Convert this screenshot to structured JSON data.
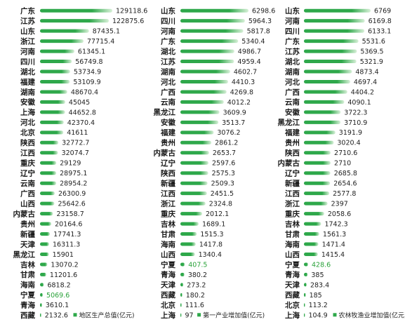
{
  "chart_data": [
    {
      "type": "bar",
      "orientation": "horizontal",
      "title": "",
      "series": [
        {
          "name": "地区生产总值(亿元)"
        }
      ],
      "bar_color": "#2ea84a",
      "bar_gradient_end": "#d8f0d8",
      "highlight_color": "#2aa23a",
      "highlight": [
        "宁夏"
      ],
      "items": [
        {
          "label": "广东",
          "value": 129118.6,
          "text": "129118.6"
        },
        {
          "label": "江苏",
          "value": 122875.6,
          "text": "122875.6"
        },
        {
          "label": "山东",
          "value": 87435.1,
          "text": "87435.1"
        },
        {
          "label": "浙江",
          "value": 77715.4,
          "text": "77715.4"
        },
        {
          "label": "河南",
          "value": 61345.1,
          "text": "61345.1"
        },
        {
          "label": "四川",
          "value": 56749.8,
          "text": "56749.8"
        },
        {
          "label": "湖北",
          "value": 53734.9,
          "text": "53734.9"
        },
        {
          "label": "福建",
          "value": 53109.9,
          "text": "53109.9"
        },
        {
          "label": "湖南",
          "value": 48670.4,
          "text": "48670.4"
        },
        {
          "label": "安徽",
          "value": 45045,
          "text": "45045"
        },
        {
          "label": "上海",
          "value": 44652.8,
          "text": "44652.8"
        },
        {
          "label": "河北",
          "value": 42370.4,
          "text": "42370.4"
        },
        {
          "label": "北京",
          "value": 41611,
          "text": "41611"
        },
        {
          "label": "陕西",
          "value": 32772.7,
          "text": "32772.7"
        },
        {
          "label": "江西",
          "value": 32074.7,
          "text": "32074.7"
        },
        {
          "label": "重庆",
          "value": 29129,
          "text": "29129"
        },
        {
          "label": "辽宁",
          "value": 28975.1,
          "text": "28975.1"
        },
        {
          "label": "云南",
          "value": 28954.2,
          "text": "28954.2"
        },
        {
          "label": "广西",
          "value": 26300.9,
          "text": "26300.9"
        },
        {
          "label": "山西",
          "value": 25642.6,
          "text": "25642.6"
        },
        {
          "label": "内蒙古",
          "value": 23158.7,
          "text": "23158.7"
        },
        {
          "label": "贵州",
          "value": 20164.6,
          "text": "20164.6"
        },
        {
          "label": "新疆",
          "value": 17741.3,
          "text": "17741.3"
        },
        {
          "label": "天津",
          "value": 16311.3,
          "text": "16311.3"
        },
        {
          "label": "黑龙江",
          "value": 15901,
          "text": "15901"
        },
        {
          "label": "吉林",
          "value": 13070.2,
          "text": "13070.2"
        },
        {
          "label": "甘肃",
          "value": 11201.6,
          "text": "11201.6"
        },
        {
          "label": "海南",
          "value": 6818.2,
          "text": "6818.2"
        },
        {
          "label": "宁夏",
          "value": 5069.6,
          "text": "5069.6"
        },
        {
          "label": "青海",
          "value": 3610.1,
          "text": "3610.1"
        },
        {
          "label": "西藏",
          "value": 2132.6,
          "text": "2132.6"
        }
      ]
    },
    {
      "type": "bar",
      "orientation": "horizontal",
      "title": "",
      "series": [
        {
          "name": "第一产业增加值(亿元)"
        }
      ],
      "bar_color": "#2ea84a",
      "bar_gradient_end": "#d8f0d8",
      "highlight_color": "#2aa23a",
      "highlight": [
        "宁夏"
      ],
      "items": [
        {
          "label": "山东",
          "value": 6298.6,
          "text": "6298.6"
        },
        {
          "label": "四川",
          "value": 5964.3,
          "text": "5964.3"
        },
        {
          "label": "河南",
          "value": 5817.8,
          "text": "5817.8"
        },
        {
          "label": "广东",
          "value": 5340.4,
          "text": "5340.4"
        },
        {
          "label": "湖北",
          "value": 4986.7,
          "text": "4986.7"
        },
        {
          "label": "江苏",
          "value": 4959.4,
          "text": "4959.4"
        },
        {
          "label": "湖南",
          "value": 4602.7,
          "text": "4602.7"
        },
        {
          "label": "河北",
          "value": 4410.3,
          "text": "4410.3"
        },
        {
          "label": "广西",
          "value": 4269.8,
          "text": "4269.8"
        },
        {
          "label": "云南",
          "value": 4012.2,
          "text": "4012.2"
        },
        {
          "label": "黑龙江",
          "value": 3609.9,
          "text": "3609.9"
        },
        {
          "label": "安徽",
          "value": 3513.7,
          "text": "3513.7"
        },
        {
          "label": "福建",
          "value": 3076.2,
          "text": "3076.2"
        },
        {
          "label": "贵州",
          "value": 2861.2,
          "text": "2861.2"
        },
        {
          "label": "内蒙古",
          "value": 2653.7,
          "text": "2653.7"
        },
        {
          "label": "辽宁",
          "value": 2597.6,
          "text": "2597.6"
        },
        {
          "label": "陕西",
          "value": 2575.3,
          "text": "2575.3"
        },
        {
          "label": "新疆",
          "value": 2509.3,
          "text": "2509.3"
        },
        {
          "label": "江西",
          "value": 2451.5,
          "text": "2451.5"
        },
        {
          "label": "浙江",
          "value": 2324.8,
          "text": "2324.8"
        },
        {
          "label": "重庆",
          "value": 2012.1,
          "text": "2012.1"
        },
        {
          "label": "吉林",
          "value": 1689.1,
          "text": "1689.1"
        },
        {
          "label": "甘肃",
          "value": 1515.3,
          "text": "1515.3"
        },
        {
          "label": "海南",
          "value": 1417.8,
          "text": "1417.8"
        },
        {
          "label": "山西",
          "value": 1340.4,
          "text": "1340.4"
        },
        {
          "label": "宁夏",
          "value": 407.5,
          "text": "407.5"
        },
        {
          "label": "青海",
          "value": 380.2,
          "text": "380.2"
        },
        {
          "label": "天津",
          "value": 273.2,
          "text": "273.2"
        },
        {
          "label": "西藏",
          "value": 180.2,
          "text": "180.2"
        },
        {
          "label": "北京",
          "value": 111.6,
          "text": "111.6"
        },
        {
          "label": "上海",
          "value": 97,
          "text": "97"
        }
      ]
    },
    {
      "type": "bar",
      "orientation": "horizontal",
      "title": "",
      "series": [
        {
          "name": "农林牧渔业增加值(亿元)"
        }
      ],
      "bar_color": "#2ea84a",
      "bar_gradient_end": "#d8f0d8",
      "highlight_color": "#2aa23a",
      "highlight": [
        "宁夏"
      ],
      "items": [
        {
          "label": "山东",
          "value": 6769,
          "text": "6769"
        },
        {
          "label": "河南",
          "value": 6169.8,
          "text": "6169.8"
        },
        {
          "label": "四川",
          "value": 6133.1,
          "text": "6133.1"
        },
        {
          "label": "广东",
          "value": 5531.6,
          "text": "5531.6"
        },
        {
          "label": "江苏",
          "value": 5369.5,
          "text": "5369.5"
        },
        {
          "label": "湖北",
          "value": 5321.9,
          "text": "5321.9"
        },
        {
          "label": "湖南",
          "value": 4873.4,
          "text": "4873.4"
        },
        {
          "label": "河北",
          "value": 4697.4,
          "text": "4697.4"
        },
        {
          "label": "广西",
          "value": 4404.2,
          "text": "4404.2"
        },
        {
          "label": "云南",
          "value": 4090.1,
          "text": "4090.1"
        },
        {
          "label": "安徽",
          "value": 3722.3,
          "text": "3722.3"
        },
        {
          "label": "黑龙江",
          "value": 3710.9,
          "text": "3710.9"
        },
        {
          "label": "福建",
          "value": 3191.9,
          "text": "3191.9"
        },
        {
          "label": "贵州",
          "value": 3020.4,
          "text": "3020.4"
        },
        {
          "label": "陕西",
          "value": 2710.6,
          "text": "2710.6"
        },
        {
          "label": "内蒙古",
          "value": 2710,
          "text": "2710"
        },
        {
          "label": "辽宁",
          "value": 2685.8,
          "text": "2685.8"
        },
        {
          "label": "新疆",
          "value": 2654.6,
          "text": "2654.6"
        },
        {
          "label": "江西",
          "value": 2577.8,
          "text": "2577.8"
        },
        {
          "label": "浙江",
          "value": 2397,
          "text": "2397"
        },
        {
          "label": "重庆",
          "value": 2058.6,
          "text": "2058.6"
        },
        {
          "label": "吉林",
          "value": 1742.3,
          "text": "1742.3"
        },
        {
          "label": "甘肃",
          "value": 1561.3,
          "text": "1561.3"
        },
        {
          "label": "海南",
          "value": 1471.4,
          "text": "1471.4"
        },
        {
          "label": "山西",
          "value": 1415.4,
          "text": "1415.4"
        },
        {
          "label": "宁夏",
          "value": 428.6,
          "text": "428.6"
        },
        {
          "label": "青海",
          "value": 385,
          "text": "385"
        },
        {
          "label": "天津",
          "value": 283.4,
          "text": "283.4"
        },
        {
          "label": "西藏",
          "value": 185,
          "text": "185"
        },
        {
          "label": "北京",
          "value": 113.2,
          "text": "113.2"
        },
        {
          "label": "上海",
          "value": 104.9,
          "text": "104.9"
        }
      ]
    }
  ]
}
